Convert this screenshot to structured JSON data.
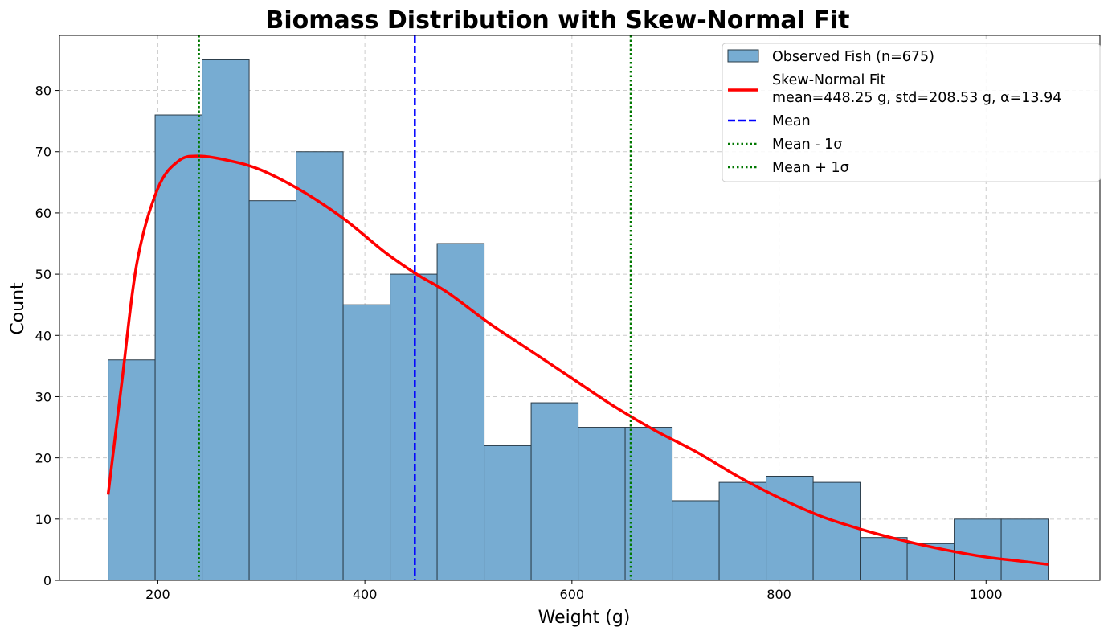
{
  "chart_data": {
    "type": "bar",
    "title": "Biomass Distribution with Skew-Normal Fit",
    "xlabel": "Weight (g)",
    "ylabel": "Count",
    "xlim": [
      105,
      1110
    ],
    "ylim": [
      0,
      89
    ],
    "xticks": [
      200,
      400,
      600,
      800,
      1000
    ],
    "yticks": [
      0,
      10,
      20,
      30,
      40,
      50,
      60,
      70,
      80
    ],
    "grid": true,
    "legend_position": "top-right",
    "histogram": {
      "name": "Observed Fish (n=675)",
      "color": "#77acd2",
      "edge_color": "#2a3b47",
      "bin_start": 152,
      "bin_end": 1060,
      "counts": [
        36,
        76,
        85,
        62,
        70,
        45,
        50,
        55,
        22,
        29,
        25,
        25,
        13,
        16,
        17,
        16,
        7,
        6,
        10,
        10
      ]
    },
    "fit": {
      "name": "Skew-Normal Fit",
      "stats_label": "mean=448.25 g, std=208.53 g, α=13.94",
      "color": "#ff0000",
      "points": [
        [
          152,
          14
        ],
        [
          165,
          32
        ],
        [
          180,
          52
        ],
        [
          200,
          64
        ],
        [
          220,
          68.5
        ],
        [
          240,
          69.3
        ],
        [
          270,
          68.5
        ],
        [
          300,
          67
        ],
        [
          340,
          63.5
        ],
        [
          380,
          59
        ],
        [
          420,
          53.5
        ],
        [
          450,
          50
        ],
        [
          480,
          47
        ],
        [
          520,
          42
        ],
        [
          560,
          37.5
        ],
        [
          600,
          33
        ],
        [
          640,
          28.5
        ],
        [
          680,
          24.5
        ],
        [
          720,
          21
        ],
        [
          760,
          17
        ],
        [
          800,
          13.5
        ],
        [
          840,
          10.5
        ],
        [
          880,
          8.3
        ],
        [
          920,
          6.5
        ],
        [
          960,
          5
        ],
        [
          1000,
          3.8
        ],
        [
          1030,
          3.2
        ],
        [
          1060,
          2.6
        ]
      ]
    },
    "reference_lines": [
      {
        "name": "Mean",
        "x": 448.25,
        "color": "#0000ff",
        "style": "dashed"
      },
      {
        "name": "Mean - 1σ",
        "x": 239.72,
        "color": "#007700",
        "style": "dotted"
      },
      {
        "name": "Mean + 1σ",
        "x": 656.78,
        "color": "#007700",
        "style": "dotted"
      }
    ]
  }
}
